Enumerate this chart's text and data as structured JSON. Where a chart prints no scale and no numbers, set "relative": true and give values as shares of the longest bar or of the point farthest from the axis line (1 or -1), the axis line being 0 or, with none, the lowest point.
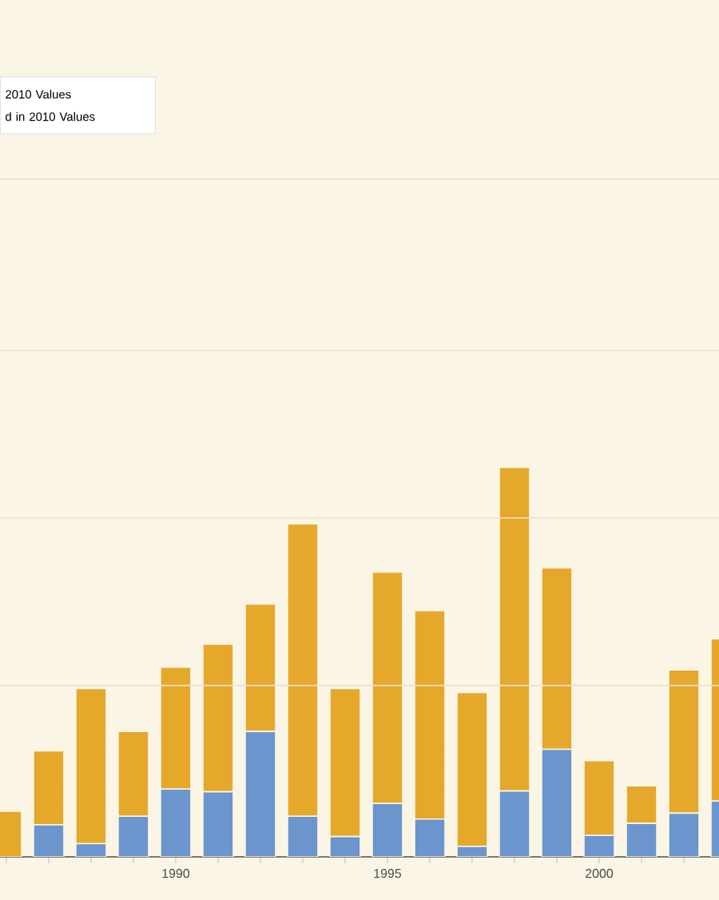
{
  "chart_data": {
    "type": "bar",
    "stacked": true,
    "relative": true,
    "ref_lines": [
      {
        "axis": "y",
        "value": 0.44,
        "color": "#e8e2d2"
      },
      {
        "axis": "y",
        "value": 0.87,
        "color": "#e8e2d2"
      },
      {
        "axis": "y",
        "value": 1.3,
        "color": "#e8e2d2"
      },
      {
        "axis": "y",
        "value": 1.74,
        "color": "#e8e2d2"
      }
    ],
    "categories": [
      null,
      null,
      null,
      null,
      "1990",
      null,
      null,
      null,
      null,
      "1995",
      null,
      null,
      null,
      null,
      "2000",
      null,
      null,
      null
    ],
    "series": [
      {
        "color": "#6b95cc",
        "values": [
          0,
          0.082,
          0.034,
          0.104,
          0.174,
          0.167,
          0.322,
          0.104,
          0.052,
          0.137,
          0.097,
          0.027,
          0.169,
          0.276,
          0.055,
          0.086,
          0.112,
          0.143
        ]
      },
      {
        "color": "#e5a82a",
        "values": [
          0.117,
          0.19,
          0.398,
          0.218,
          0.313,
          0.379,
          0.327,
          0.751,
          0.38,
          0.594,
          0.535,
          0.395,
          0.831,
          0.466,
          0.192,
          0.096,
          0.368,
          0.417
        ]
      }
    ],
    "annotations": [
      "2010 Values",
      "d in 2010 Values"
    ]
  }
}
